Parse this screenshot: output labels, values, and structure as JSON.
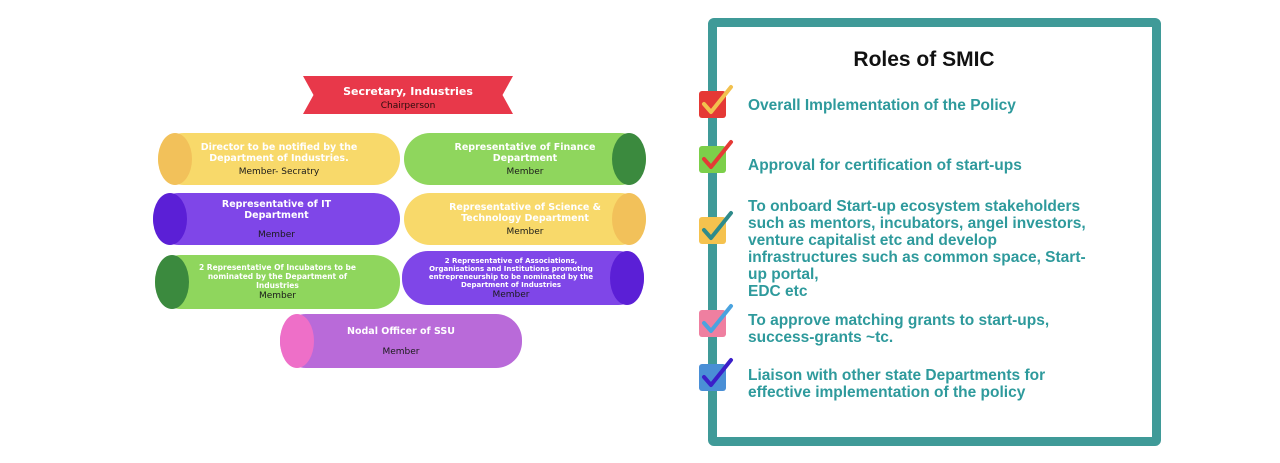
{
  "org_chart": {
    "chairperson": {
      "title": "Secretary, Industries",
      "role": "Chairperson"
    },
    "members": [
      {
        "title": "Director to be notified by the Department of Industries.",
        "role": "Member- Secratry"
      },
      {
        "title": "Representative of Finance Department",
        "role": "Member"
      },
      {
        "title": "Representative of IT Department",
        "role": "Member"
      },
      {
        "title": "Representative of Science & Technology Department",
        "role": "Member"
      },
      {
        "title": "2 Representative Of Incubators to be nominated by the Department of Industries",
        "role": "Member"
      },
      {
        "title": "2 Representative of Associations, Organisations and Institutions promoting entrepreneurship to be nominated by the Department of Industries",
        "role": "Member"
      },
      {
        "title": "Nodal Officer of SSU",
        "role": "Member"
      }
    ]
  },
  "roles_panel": {
    "title": "Roles of SMIC",
    "items": [
      {
        "text": "Overall Implementation of the Policy",
        "box_color": "#e53935",
        "tick_color": "#f2c14e"
      },
      {
        "text": "Approval for certification of start-ups",
        "box_color": "#7ccf4a",
        "tick_color": "#e53935"
      },
      {
        "text": "To onboard Start-up ecosystem stakeholders\nsuch as mentors, incubators, angel investors,\nventure capitalist etc and develop\ninfrastructures such as common space, Start-\nup portal,\nEDC etc",
        "box_color": "#f5c24e",
        "tick_color": "#2e8b8b"
      },
      {
        "text": "To approve matching grants to start-ups,\nsuccess-grants ~tc.",
        "box_color": "#ef7fa0",
        "tick_color": "#4aa3df"
      },
      {
        "text": "Liaison with other state Departments for\neffective implementation of the policy",
        "box_color": "#4a8fd6",
        "tick_color": "#3b1fc9"
      }
    ]
  }
}
